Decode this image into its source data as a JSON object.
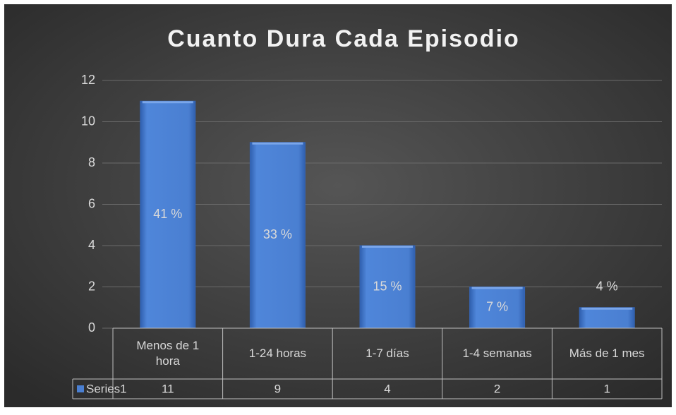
{
  "chart_data": {
    "type": "bar",
    "title": "Cuanto Dura Cada Episodio",
    "categories": [
      "Menos de 1 hora",
      "1-24 horas",
      "1-7 días",
      "1-4 semanas",
      "Más de 1 mes"
    ],
    "series": [
      {
        "name": "Series1",
        "color": "#4a7fd1",
        "values": [
          11,
          9,
          4,
          2,
          1
        ],
        "value_labels": [
          "41 %",
          "33 %",
          "15 %",
          "7 %",
          "4 %"
        ]
      }
    ],
    "ylim": [
      0,
      12
    ],
    "yticks": [
      0,
      2,
      4,
      6,
      8,
      10,
      12
    ],
    "grid": true,
    "data_table": true
  }
}
